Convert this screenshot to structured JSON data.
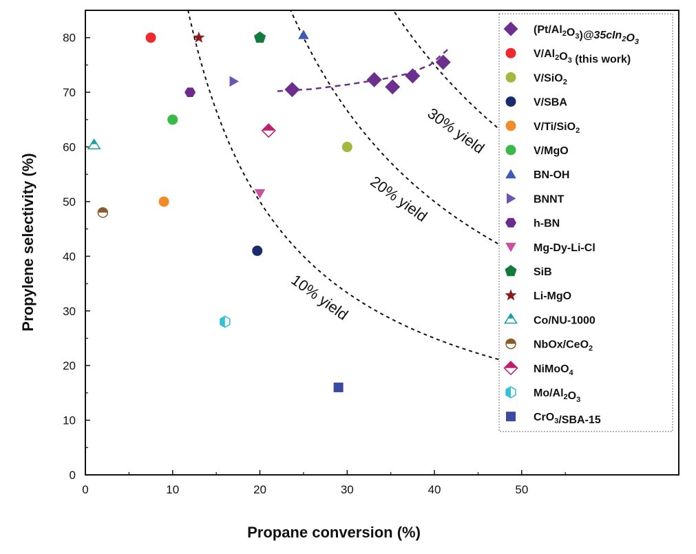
{
  "chart_data": {
    "type": "scatter",
    "xlabel": "Propane conversion (%)",
    "ylabel": "Propylene selectivity (%)",
    "xlim": [
      0,
      68
    ],
    "ylim": [
      0,
      85
    ],
    "xticks": [
      0,
      10,
      20,
      30,
      40,
      50
    ],
    "yticks": [
      0,
      10,
      20,
      30,
      40,
      50,
      60,
      70,
      80
    ],
    "grid": false,
    "legend_position": "right",
    "series": [
      {
        "name": "(Pt/Al2O3)@35cIn2O3",
        "marker": "diamond",
        "color": "#6d2f8e",
        "points": [
          [
            23.7,
            70.5
          ],
          [
            33.1,
            72.3
          ],
          [
            35.2,
            71.0
          ],
          [
            37.5,
            73.0
          ],
          [
            41.0,
            75.5
          ]
        ],
        "trend": [
          [
            22.0,
            70.2
          ],
          [
            26.0,
            70.6
          ],
          [
            30.0,
            71.4
          ],
          [
            34.0,
            72.4
          ],
          [
            37.0,
            73.4
          ],
          [
            39.5,
            75.0
          ],
          [
            41.5,
            77.8
          ]
        ]
      },
      {
        "name": "V/Al2O3 (this work)",
        "marker": "circle",
        "color": "#ee2a2f",
        "points": [
          [
            7.5,
            80.0
          ]
        ]
      },
      {
        "name": "V/SiO2",
        "marker": "circle",
        "color": "#a3b83c",
        "points": [
          [
            30.0,
            60.0
          ]
        ]
      },
      {
        "name": "V/SBA",
        "marker": "circle",
        "color": "#1d2a6b",
        "points": [
          [
            19.7,
            41.0
          ]
        ]
      },
      {
        "name": "V/Ti/SiO2",
        "marker": "circle",
        "color": "#f28c28",
        "points": [
          [
            9.0,
            50.0
          ]
        ]
      },
      {
        "name": "V/MgO",
        "marker": "circle",
        "color": "#3cb84a",
        "points": [
          [
            10.0,
            65.0
          ]
        ]
      },
      {
        "name": "BN-OH",
        "marker": "triangle-up",
        "color": "#3b5bb5",
        "points": [
          [
            25.0,
            80.5
          ]
        ]
      },
      {
        "name": "BNNT",
        "marker": "triangle-right",
        "color": "#6b55b0",
        "points": [
          [
            17.0,
            72.0
          ]
        ]
      },
      {
        "name": "h-BN",
        "marker": "hexagon",
        "color": "#6d2a8e",
        "points": [
          [
            12.0,
            70.0
          ]
        ]
      },
      {
        "name": "Mg-Dy-Li-Cl",
        "marker": "triangle-down",
        "color": "#c94fa0",
        "points": [
          [
            20.0,
            51.5
          ]
        ]
      },
      {
        "name": "SiB",
        "marker": "pentagon",
        "color": "#147a3c",
        "points": [
          [
            20.0,
            80.0
          ]
        ]
      },
      {
        "name": "Li-MgO",
        "marker": "star",
        "color": "#8b1a1a",
        "points": [
          [
            13.0,
            80.0
          ]
        ]
      },
      {
        "name": "Co/NU-1000",
        "marker": "triangle-up-half",
        "color": "#1aa0a0",
        "points": [
          [
            1.0,
            60.3
          ]
        ]
      },
      {
        "name": "NbOx/CeO2",
        "marker": "circle-half",
        "color": "#8a5a2a",
        "points": [
          [
            2.0,
            48.0
          ]
        ]
      },
      {
        "name": "NiMoO4",
        "marker": "diamond-half",
        "color": "#c0206a",
        "points": [
          [
            21.0,
            63.0
          ]
        ]
      },
      {
        "name": "Mo/Al2O3",
        "marker": "hexagon-half",
        "color": "#36c0d6",
        "points": [
          [
            16.0,
            28.0
          ]
        ]
      },
      {
        "name": "CrO3/SBA-15",
        "marker": "square",
        "color": "#3b4aa0",
        "points": [
          [
            29.0,
            16.0
          ]
        ]
      }
    ],
    "yield_curves": [
      {
        "label": "10% yield",
        "yield": 10
      },
      {
        "label": "20% yield",
        "yield": 20
      },
      {
        "label": "30% yield",
        "yield": 30
      }
    ]
  }
}
